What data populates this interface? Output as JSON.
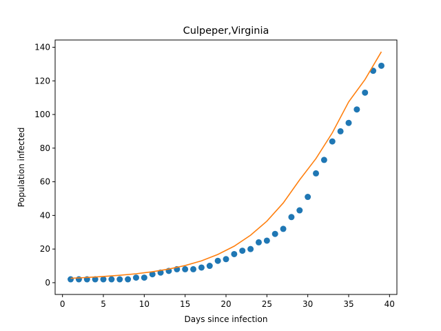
{
  "chart_data": {
    "type": "scatter",
    "title": "Culpeper,Virginia",
    "xlabel": "Days since infection",
    "ylabel": "Population infected",
    "xlim": [
      -0.9,
      40.9
    ],
    "ylim": [
      -7.0,
      144.3
    ],
    "xticks": [
      0,
      5,
      10,
      15,
      20,
      25,
      30,
      35,
      40
    ],
    "yticks": [
      0,
      20,
      40,
      60,
      80,
      100,
      120,
      140
    ],
    "grid": false,
    "series": [
      {
        "kind": "scatter",
        "color": "#1f77b4",
        "x": [
          1,
          2,
          3,
          4,
          5,
          6,
          7,
          8,
          9,
          10,
          11,
          12,
          13,
          14,
          15,
          16,
          17,
          18,
          19,
          20,
          21,
          22,
          23,
          24,
          25,
          26,
          27,
          28,
          29,
          30,
          31,
          32,
          33,
          34,
          35,
          36,
          37,
          38,
          39
        ],
        "y": [
          2,
          2,
          2,
          2,
          2,
          2,
          2,
          2,
          3,
          3,
          5,
          6,
          7,
          8,
          8,
          8,
          9,
          10,
          13,
          14,
          17,
          19,
          20,
          24,
          25,
          29,
          32,
          39,
          43,
          51,
          65,
          73,
          84,
          90,
          95,
          103,
          113,
          126,
          129
        ]
      },
      {
        "kind": "line",
        "color": "#ff7f0e",
        "x": [
          1,
          3,
          5,
          7,
          9,
          11,
          13,
          15,
          17,
          19,
          21,
          23,
          25,
          27,
          29,
          31,
          33,
          35,
          37,
          39
        ],
        "y": [
          2.6,
          3.1,
          3.7,
          4.4,
          5.3,
          6.5,
          8.1,
          10.2,
          13.0,
          16.8,
          21.7,
          28.2,
          36.6,
          47.4,
          61.1,
          73.8,
          89.1,
          107.5,
          120.8,
          137.3
        ]
      }
    ]
  }
}
